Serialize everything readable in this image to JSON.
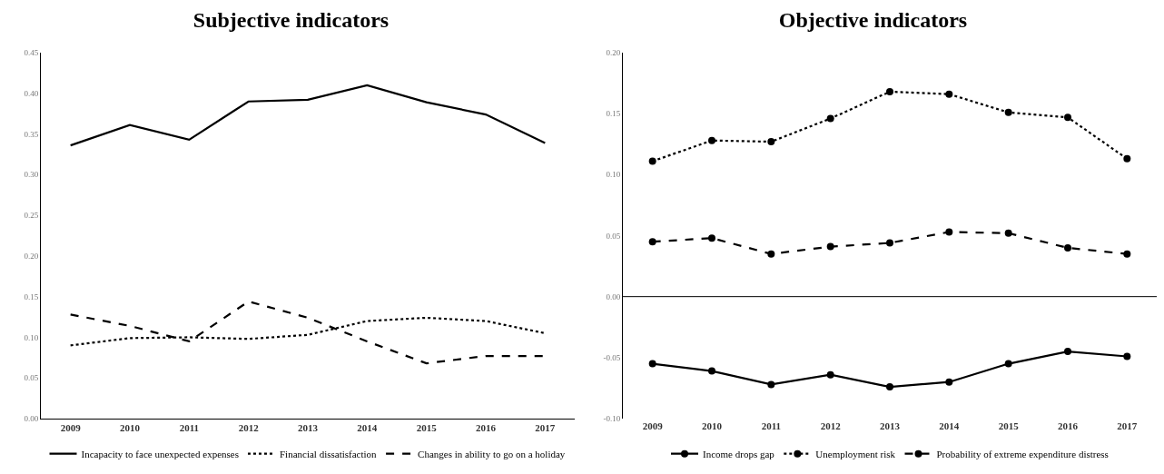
{
  "chart_data": [
    {
      "type": "line",
      "title": "Subjective indicators",
      "categories": [
        "2009",
        "2010",
        "2011",
        "2012",
        "2013",
        "2014",
        "2015",
        "2016",
        "2017"
      ],
      "ylim": [
        0,
        0.45
      ],
      "yticks": [
        {
          "value": 0,
          "label": "0.00"
        },
        {
          "value": 0.05,
          "label": "0.05"
        },
        {
          "value": 0.1,
          "label": "0.10"
        },
        {
          "value": 0.15,
          "label": "0.15"
        },
        {
          "value": 0.2,
          "label": "0.20"
        },
        {
          "value": 0.25,
          "label": "0.25"
        },
        {
          "value": 0.3,
          "label": "0.30"
        },
        {
          "value": 0.35,
          "label": "0.35"
        },
        {
          "value": 0.4,
          "label": "0.40"
        },
        {
          "value": 0.45,
          "label": "0.45"
        }
      ],
      "grid": false,
      "legend": "bottom",
      "marker": "none",
      "series": [
        {
          "name": "Incapacity to face unexpected expenses",
          "color": "#000000",
          "line_style": "solid",
          "values": [
            0.336,
            0.361,
            0.343,
            0.39,
            0.392,
            0.41,
            0.389,
            0.374,
            0.339
          ]
        },
        {
          "name": "Financial dissatisfaction",
          "color": "#000000",
          "line_style": "dotted",
          "values": [
            0.09,
            0.099,
            0.1,
            0.098,
            0.103,
            0.12,
            0.124,
            0.12,
            0.105
          ]
        },
        {
          "name": "Changes in ability to go on a holiday",
          "color": "#000000",
          "line_style": "dashed",
          "values": [
            0.128,
            0.114,
            0.095,
            0.144,
            0.124,
            0.095,
            0.068,
            0.077,
            0.077
          ]
        }
      ]
    },
    {
      "type": "line",
      "title": "Objective indicators",
      "categories": [
        "2009",
        "2010",
        "2011",
        "2012",
        "2013",
        "2014",
        "2015",
        "2016",
        "2017"
      ],
      "ylim": [
        -0.1,
        0.2
      ],
      "yticks": [
        {
          "value": -0.1,
          "label": "-0.10"
        },
        {
          "value": -0.05,
          "label": "-0.05"
        },
        {
          "value": 0,
          "label": "0.00"
        },
        {
          "value": 0.05,
          "label": "0.05"
        },
        {
          "value": 0.1,
          "label": "0.10"
        },
        {
          "value": 0.15,
          "label": "0.15"
        },
        {
          "value": 0.2,
          "label": "0.20"
        }
      ],
      "grid": false,
      "legend": "bottom",
      "marker": "circle",
      "ref_lines": [
        {
          "axis": "y",
          "value": 0,
          "color": "#000000"
        }
      ],
      "series": [
        {
          "name": "Income drops gap",
          "color": "#000000",
          "line_style": "solid",
          "values": [
            -0.055,
            -0.061,
            -0.072,
            -0.064,
            -0.074,
            -0.07,
            -0.055,
            -0.045,
            -0.049
          ]
        },
        {
          "name": "Unemployment risk",
          "color": "#000000",
          "line_style": "dotted",
          "values": [
            0.111,
            0.128,
            0.127,
            0.146,
            0.168,
            0.166,
            0.151,
            0.147,
            0.113
          ]
        },
        {
          "name": "Probability of extreme expenditure distress",
          "color": "#000000",
          "line_style": "dashed",
          "values": [
            0.045,
            0.048,
            0.035,
            0.041,
            0.044,
            0.053,
            0.052,
            0.04,
            0.035
          ]
        }
      ]
    }
  ]
}
